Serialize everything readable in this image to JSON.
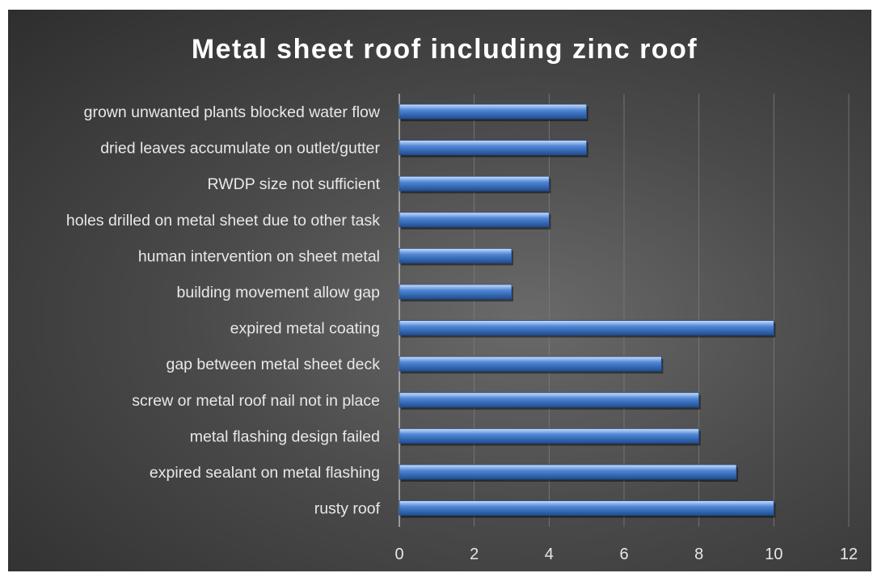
{
  "chart_data": {
    "type": "bar",
    "orientation": "horizontal",
    "title": "Metal sheet roof including zinc roof",
    "categories": [
      "grown unwanted plants blocked water flow",
      "dried leaves accumulate on outlet/gutter",
      "RWDP size not sufficient",
      "holes drilled on metal sheet due to other task",
      "human intervention on sheet metal",
      "building movement allow gap",
      "expired metal coating",
      "gap between metal sheet deck",
      "screw or metal roof nail not in place",
      "metal flashing design failed",
      "expired sealant on metal flashing",
      "rusty roof"
    ],
    "values": [
      5,
      5,
      4,
      4,
      3,
      3,
      10,
      7,
      8,
      8,
      9,
      10
    ],
    "xlim": [
      0,
      12
    ],
    "xticks": [
      "0",
      "2",
      "4",
      "6",
      "8",
      "10",
      "12"
    ],
    "grid": true,
    "xlabel": "",
    "ylabel": "",
    "colors": {
      "bar": "#4f86d6",
      "bar_highlight": "#cfe0f7",
      "bar_shadow": "#1f4e92",
      "grid": "#7c7c7c",
      "text": "#e8e8e8"
    }
  }
}
